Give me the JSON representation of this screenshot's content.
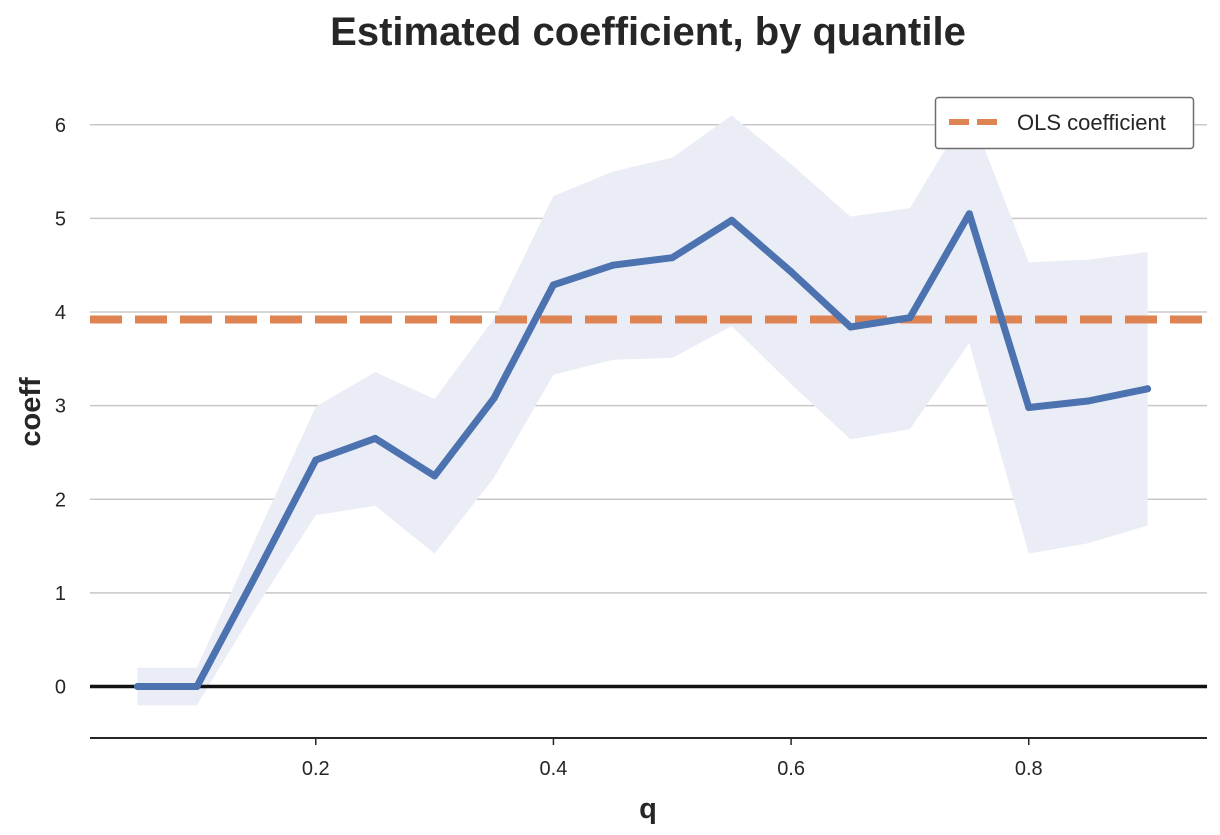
{
  "colors": {
    "series": "#4c72b0",
    "band": "#eaedf5",
    "ols": "#dd8452",
    "grid": "#c8c8c8",
    "zero_line": "#111111",
    "axis": "#262626"
  },
  "chart_data": {
    "type": "line",
    "title": "Estimated coefficient, by quantile",
    "xlabel": "q",
    "ylabel": "coeff",
    "xlim": [
      0.01,
      0.95
    ],
    "ylim": [
      -0.55,
      6.5
    ],
    "xticks": [
      0.2,
      0.4,
      0.6,
      0.8
    ],
    "xtick_labels": [
      "0.2",
      "0.4",
      "0.6",
      "0.8"
    ],
    "yticks": [
      0,
      1,
      2,
      3,
      4,
      5,
      6
    ],
    "ytick_labels": [
      "0",
      "1",
      "2",
      "3",
      "4",
      "5",
      "6"
    ],
    "grid": "horizontal",
    "legend_position": "top-right",
    "x": [
      0.05,
      0.1,
      0.15,
      0.2,
      0.25,
      0.3,
      0.35,
      0.4,
      0.45,
      0.5,
      0.55,
      0.6,
      0.65,
      0.7,
      0.75,
      0.8,
      0.85,
      0.9
    ],
    "series": [
      {
        "values": [
          0.0,
          0.0,
          1.2,
          2.42,
          2.65,
          2.25,
          3.08,
          4.29,
          4.5,
          4.58,
          4.98,
          4.43,
          3.84,
          3.94,
          5.05,
          2.98,
          3.05,
          3.18
        ],
        "lower": [
          -0.2,
          -0.2,
          0.85,
          1.83,
          1.93,
          1.42,
          2.23,
          3.33,
          3.49,
          3.51,
          3.85,
          3.23,
          2.64,
          2.75,
          3.67,
          1.42,
          1.53,
          1.72
        ],
        "upper": [
          0.2,
          0.2,
          1.6,
          2.99,
          3.36,
          3.07,
          3.93,
          5.24,
          5.5,
          5.65,
          6.1,
          5.58,
          5.02,
          5.11,
          6.16,
          4.53,
          4.56,
          4.64
        ]
      },
      {
        "name": "OLS coefficient",
        "style": "dashed",
        "constant": 3.92
      }
    ],
    "reference_line": {
      "y": 0
    }
  }
}
